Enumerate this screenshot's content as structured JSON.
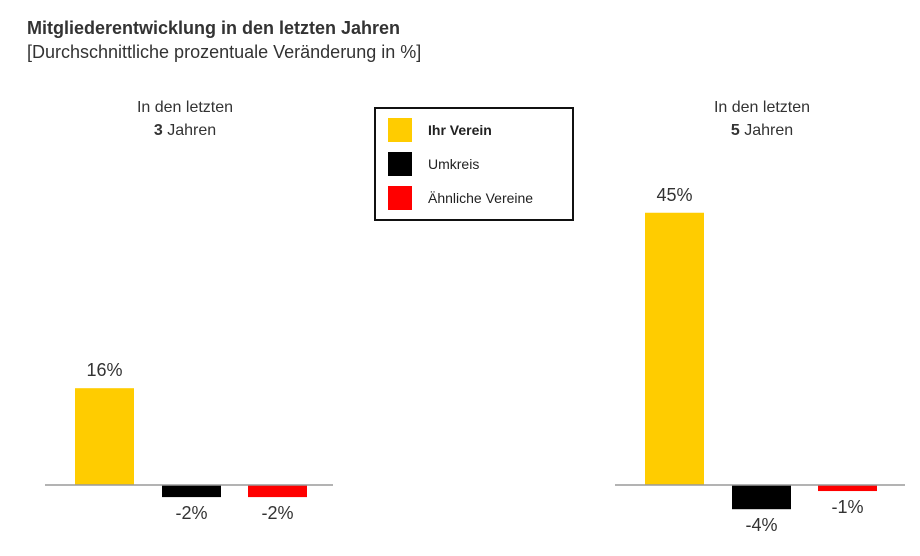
{
  "title": "Mitgliederentwicklung in den letzten Jahren",
  "subtitle": "[Durchschnittliche prozentuale Veränderung in %]",
  "legend": [
    {
      "label": "Ihr Verein",
      "color": "#FFCC00",
      "bold": true
    },
    {
      "label": "Umkreis",
      "color": "#000000",
      "bold": false
    },
    {
      "label": "Ähnliche Vereine",
      "color": "#FF0000",
      "bold": false
    }
  ],
  "chart_data": [
    {
      "type": "bar",
      "header_line1": "In den letzten",
      "header_number": "3",
      "header_unit": "Jahren",
      "categories": [
        "Ihr Verein",
        "Umkreis",
        "Ähnliche Vereine"
      ],
      "values": [
        16,
        -2,
        -2
      ],
      "labels": [
        "16%",
        "-2%",
        "-2%"
      ],
      "colors": [
        "#FFCC00",
        "#000000",
        "#FF0000"
      ]
    },
    {
      "type": "bar",
      "header_line1": "In den letzten",
      "header_number": "5",
      "header_unit": "Jahren",
      "categories": [
        "Ihr Verein",
        "Umkreis",
        "Ähnliche Vereine"
      ],
      "values": [
        45,
        -4,
        -1
      ],
      "labels": [
        "45%",
        "-4%",
        "-1%"
      ],
      "colors": [
        "#FFCC00",
        "#000000",
        "#FF0000"
      ]
    }
  ]
}
